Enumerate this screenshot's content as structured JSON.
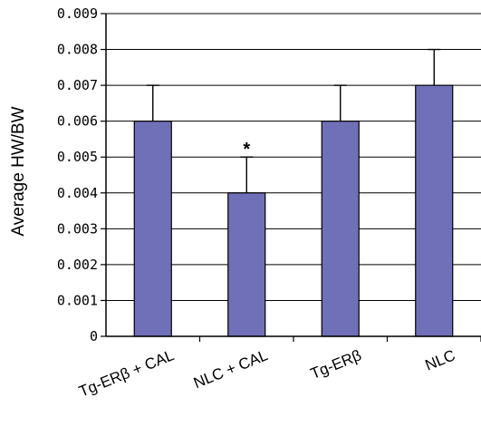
{
  "chart_data": {
    "type": "bar",
    "title": "",
    "xlabel": "",
    "ylabel": "Average HW/BW",
    "ylim": [
      0,
      0.009
    ],
    "yticks": [
      "0",
      "0.001",
      "0.002",
      "0.003",
      "0.004",
      "0.005",
      "0.006",
      "0.007",
      "0.008",
      "0.009"
    ],
    "categories": [
      "Tg-ERβ + CAL",
      "NLC + CAL",
      "Tg-ERβ",
      "NLC"
    ],
    "values": [
      0.006,
      0.004,
      0.006,
      0.007
    ],
    "error_upper": [
      0.001,
      0.001,
      0.001,
      0.001
    ],
    "annotations": [
      {
        "category_index": 1,
        "text": "*"
      }
    ],
    "grid": "horizontal",
    "legend": "none",
    "colors": {
      "bar": "#7070b8",
      "bar_stroke": "#000000",
      "grid": "#000000",
      "axis": "#000000"
    }
  }
}
